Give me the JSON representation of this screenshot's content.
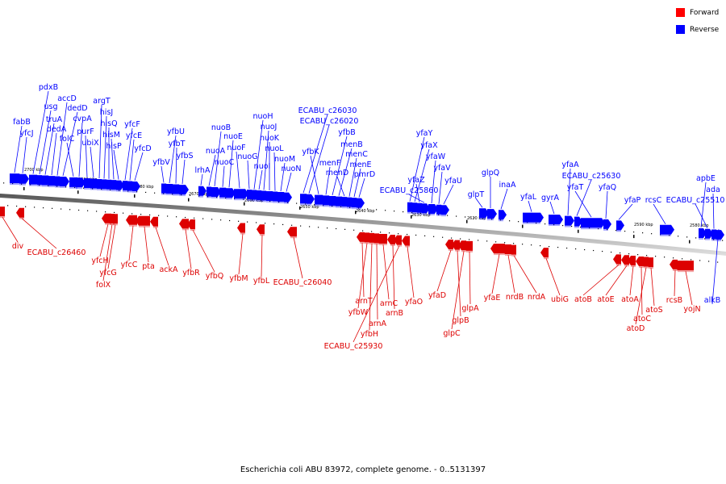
{
  "legend": {
    "forward": {
      "label": "Forward",
      "color": "#ff0000"
    },
    "reverse": {
      "label": "Reverse",
      "color": "#0000ff"
    }
  },
  "caption": "Escherichia coli ABU 83972, complete genome. - 0..5131397",
  "ticks": [
    "2700 kbp",
    "2690 kbp",
    "2680 kbp",
    "2670 kbp",
    "2660 kbp",
    "2650 kbp",
    "2640 kbp",
    "2630 kbp",
    "2620 kbp",
    "2610 kbp",
    "2600 kbp",
    "2590 kbp",
    "2580 kbp",
    "2570 kbp"
  ],
  "reverse_genes": [
    "fabB",
    "yfcJ",
    "pdxB",
    "usg",
    "truA",
    "dedA",
    "accD",
    "dedD",
    "folC",
    "cvpA",
    "purF",
    "ubiX",
    "argT",
    "hisJ",
    "hisQ",
    "hisM",
    "hisP",
    "yfcF",
    "yfcE",
    "yfcD",
    "yfbV",
    "yfbU",
    "yfbT",
    "yfbS",
    "lrhA",
    "nuoA",
    "nuoB",
    "nuoC",
    "nuoE",
    "nuoF",
    "nuoG",
    "nuoH",
    "nuoI",
    "nuoJ",
    "nuoK",
    "nuoL",
    "nuoM",
    "nuoN",
    "ECABU_c26030",
    "ECABU_c26020",
    "yfbK",
    "menF",
    "yfbB",
    "menB",
    "menD",
    "menC",
    "menE",
    "pmrD",
    "yfaY",
    "yfaX",
    "yfaZ",
    "ECABU_c25860",
    "yfaW",
    "yfaV",
    "yfaU",
    "glpT",
    "glpQ",
    "inaA",
    "yfaL",
    "gyrA",
    "yfaA",
    "ECABU_c25630",
    "yfaT",
    "yfaQ",
    "yfaP",
    "rcsC",
    "apbE",
    "ECABU_c25510",
    "ada",
    "alkB"
  ],
  "forward_genes": [
    "div",
    "ECABU_c26460",
    "yfcH",
    "folX",
    "yfcG",
    "yfcC",
    "pta",
    "ackA",
    "yfbR",
    "yfbQ",
    "yfbM",
    "yfbL",
    "ECABU_c26040",
    "arnT",
    "yfbW",
    "yfbH",
    "arnA",
    "arnC",
    "arnB",
    "ECABU_c25930",
    "yfaO",
    "yfaD",
    "glpB",
    "glpC",
    "glpA",
    "yfaE",
    "nrdB",
    "nrdA",
    "ubiG",
    "atoB",
    "atoE",
    "atoA",
    "atoC",
    "atoD",
    "atoS",
    "rcsB",
    "yojN"
  ]
}
